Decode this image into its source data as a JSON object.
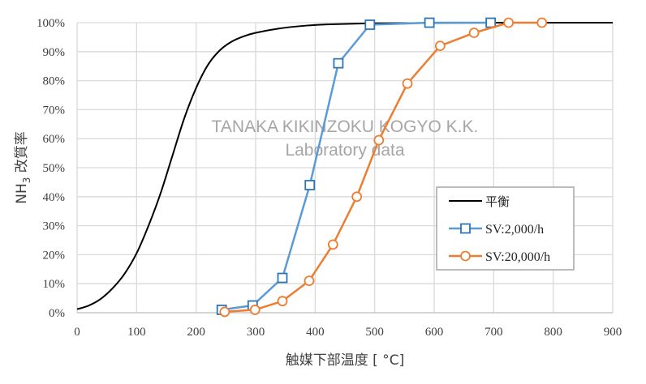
{
  "chart_data": {
    "type": "line",
    "title": "",
    "xlabel": "触媒下部温度 [ °C]",
    "ylabel_main": "NH",
    "ylabel_sub": "3",
    "ylabel_rest": " 改質率",
    "xlim": [
      0,
      900
    ],
    "ylim": [
      0,
      100
    ],
    "x_ticks": [
      "0",
      "100",
      "200",
      "300",
      "400",
      "500",
      "600",
      "700",
      "800",
      "900"
    ],
    "y_ticks": [
      "0%",
      "10%",
      "20%",
      "30%",
      "40%",
      "50%",
      "60%",
      "70%",
      "80%",
      "90%",
      "100%"
    ],
    "grid": true,
    "legend_position": "lower-right inside plot",
    "watermark": [
      "TANAKA KIKINZOKU KOGYO K.K.",
      "Laboratory data"
    ],
    "series": [
      {
        "name": "平衡",
        "color": "#000000",
        "marker": "none",
        "x": [
          0,
          20,
          40,
          60,
          80,
          100,
          120,
          140,
          160,
          180,
          200,
          220,
          240,
          260,
          280,
          300,
          340,
          380,
          420,
          500,
          600,
          700,
          800,
          900
        ],
        "y": [
          1.2,
          2.5,
          4.8,
          8.5,
          13.5,
          20.5,
          30,
          41,
          54,
          67,
          77.5,
          85.5,
          90.5,
          93.5,
          95.3,
          96.5,
          98,
          98.9,
          99.4,
          99.8,
          99.9,
          100,
          100,
          100
        ]
      },
      {
        "name": "SV:2,000/h",
        "color": "#5B9BD5",
        "marker": "square",
        "x": [
          243,
          295,
          345,
          391,
          439,
          492,
          592,
          695
        ],
        "y": [
          1.0,
          2.5,
          12.0,
          44.0,
          86.0,
          99.3,
          100,
          100
        ]
      },
      {
        "name": "SV:20,000/h",
        "color": "#ED7D31",
        "marker": "circle",
        "x": [
          248,
          299,
          345,
          390,
          430,
          470,
          507,
          555,
          610,
          667,
          725,
          781
        ],
        "y": [
          0.3,
          1.0,
          4.0,
          11.0,
          23.5,
          40.0,
          59.5,
          79.0,
          92.0,
          96.5,
          100,
          100
        ]
      }
    ]
  }
}
